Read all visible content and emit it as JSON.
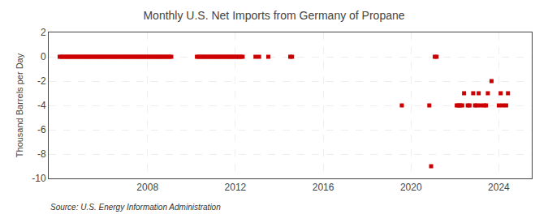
{
  "chart_data": {
    "type": "scatter",
    "title": "Monthly U.S. Net Imports from Germany of Propane",
    "ylabel": "Thousand Barrels per Day",
    "annotations": [
      "Source: U.S. Energy Information Administration"
    ],
    "ylim": [
      -10,
      2
    ],
    "yticks": [
      -10,
      -8,
      -6,
      -4,
      -2,
      0,
      2
    ],
    "xlim": [
      2003.5,
      2025.5
    ],
    "xticks": [
      2008,
      2012,
      2016,
      2020,
      2024
    ],
    "color": "#cc0000",
    "marker": "square",
    "grid": true,
    "x": [
      2004,
      2004.083,
      2004.167,
      2004.25,
      2004.333,
      2004.417,
      2004.5,
      2004.583,
      2004.667,
      2004.75,
      2004.833,
      2004.917,
      2005.0,
      2005.083,
      2005.167,
      2005.25,
      2005.333,
      2005.417,
      2005.5,
      2005.583,
      2005.667,
      2005.75,
      2005.833,
      2005.917,
      2006.0,
      2006.083,
      2006.167,
      2006.25,
      2006.333,
      2006.417,
      2006.5,
      2006.583,
      2006.667,
      2006.75,
      2006.833,
      2006.917,
      2007.0,
      2007.083,
      2007.167,
      2007.25,
      2007.333,
      2007.417,
      2007.5,
      2007.583,
      2007.667,
      2007.75,
      2007.833,
      2007.917,
      2008.0,
      2008.083,
      2008.167,
      2008.25,
      2008.333,
      2008.417,
      2008.5,
      2008.583,
      2008.667,
      2008.75,
      2008.833,
      2008.917,
      2009.0,
      2009.083,
      2010.25,
      2010.333,
      2010.417,
      2010.5,
      2010.583,
      2010.667,
      2010.75,
      2010.833,
      2010.917,
      2011.0,
      2011.083,
      2011.167,
      2011.25,
      2011.333,
      2011.417,
      2011.5,
      2011.583,
      2011.667,
      2011.75,
      2011.833,
      2011.917,
      2012.0,
      2012.083,
      2012.167,
      2012.25,
      2012.333,
      2012.917,
      2013.083,
      2013.5,
      2014.5,
      2014.583,
      2019.583,
      2020.833,
      2020.917,
      2021.083,
      2021.167,
      2022.083,
      2022.167,
      2022.25,
      2022.333,
      2022.417,
      2022.583,
      2022.667,
      2022.833,
      2022.917,
      2023.0,
      2023.083,
      2023.167,
      2023.333,
      2023.417,
      2023.5,
      2023.667,
      2024.0,
      2024.083,
      2024.167,
      2024.333,
      2024.417
    ],
    "values": [
      0,
      0,
      0,
      0,
      0,
      0,
      0,
      0,
      0,
      0,
      0,
      0,
      0,
      0,
      0,
      0,
      0,
      0,
      0,
      0,
      0,
      0,
      0,
      0,
      0,
      0,
      0,
      0,
      0,
      0,
      0,
      0,
      0,
      0,
      0,
      0,
      0,
      0,
      0,
      0,
      0,
      0,
      0,
      0,
      0,
      0,
      0,
      0,
      0,
      0,
      0,
      0,
      0,
      0,
      0,
      0,
      0,
      0,
      0,
      0,
      0,
      0,
      0,
      0,
      0,
      0,
      0,
      0,
      0,
      0,
      0,
      0,
      0,
      0,
      0,
      0,
      0,
      0,
      0,
      0,
      0,
      0,
      0,
      0,
      0,
      0,
      0,
      0,
      0,
      0,
      0,
      0,
      0,
      -4,
      -4,
      -9.0,
      0,
      0,
      -4,
      -4,
      -4,
      -4,
      -3,
      -4,
      -4,
      -3,
      -4,
      -4,
      -3,
      -4,
      -4,
      -4,
      -3,
      -2,
      -4,
      -3,
      -4,
      -4,
      -3
    ]
  }
}
